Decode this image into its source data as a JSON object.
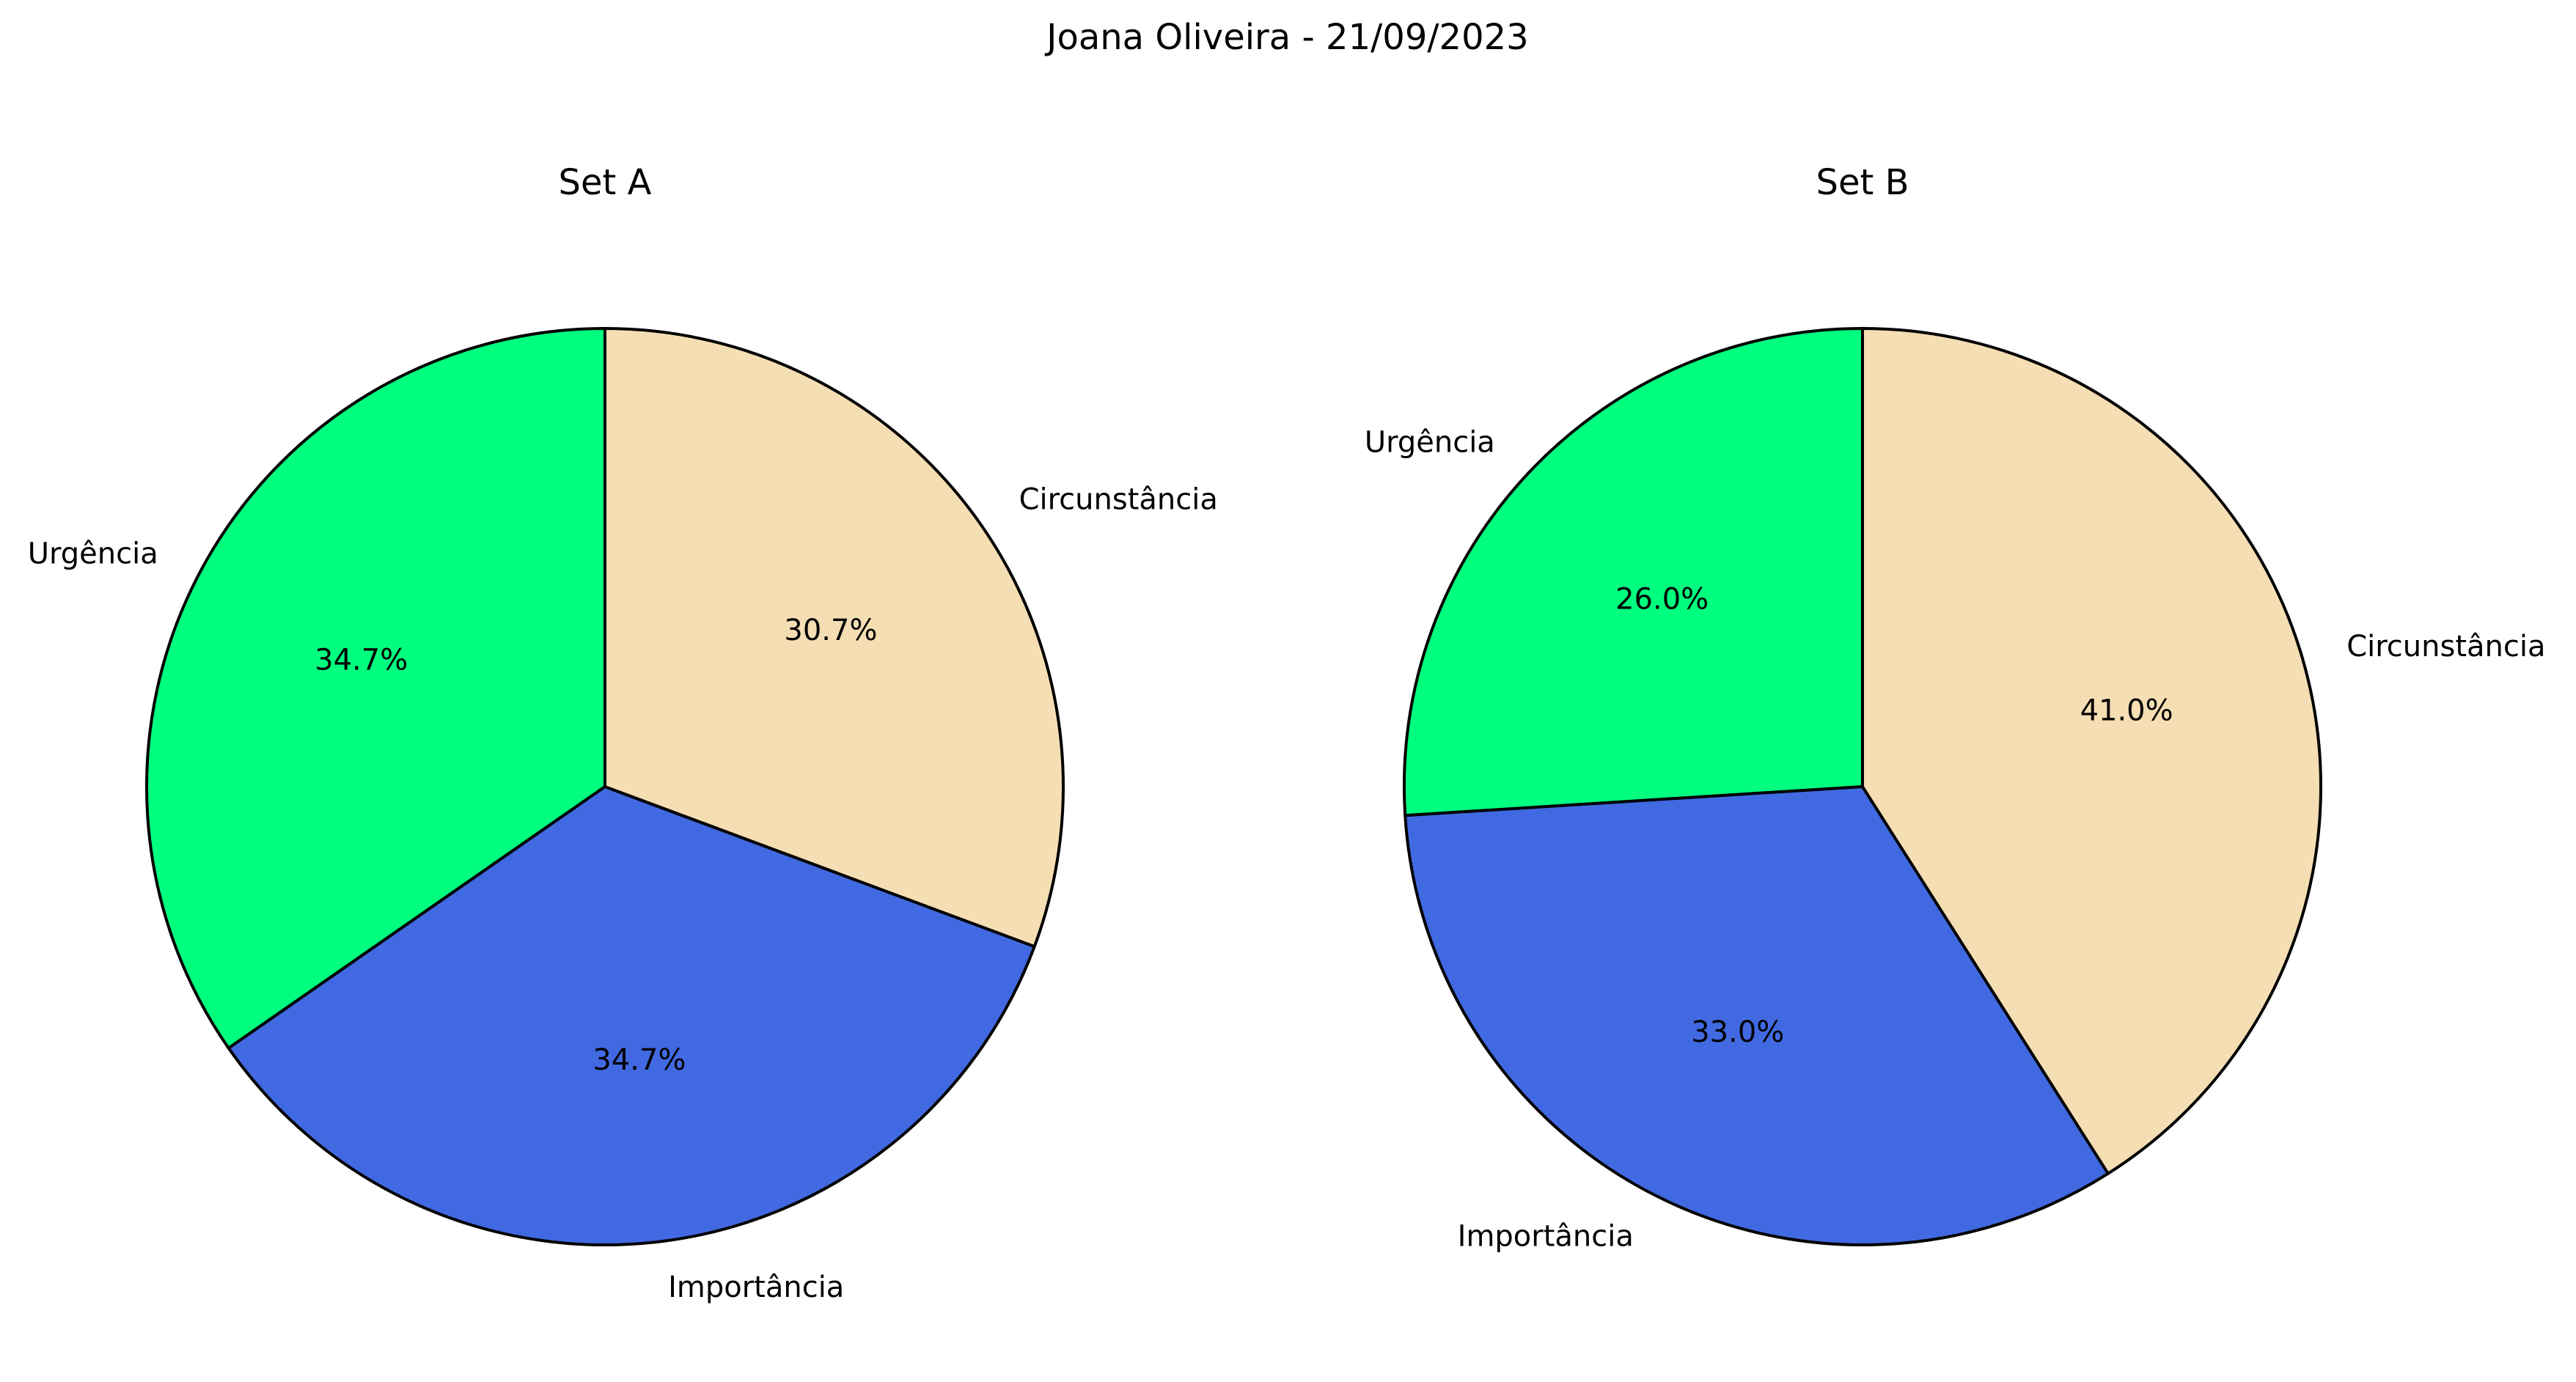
{
  "figure": {
    "suptitle": "Joana Oliveira - 21/09/2023"
  },
  "chart_data": [
    {
      "type": "pie",
      "title": "Set A",
      "start_angle_deg": 90,
      "direction": "counterclockwise",
      "slices": [
        {
          "label": "Urgência",
          "value": 34.7,
          "pct_label": "34.7%",
          "color": "#00ff7f"
        },
        {
          "label": "Importância",
          "value": 34.7,
          "pct_label": "34.7%",
          "color": "#4169e1"
        },
        {
          "label": "Circunstância",
          "value": 30.7,
          "pct_label": "30.7%",
          "color": "#f5deb3"
        }
      ]
    },
    {
      "type": "pie",
      "title": "Set B",
      "start_angle_deg": 90,
      "direction": "counterclockwise",
      "slices": [
        {
          "label": "Urgência",
          "value": 26.0,
          "pct_label": "26.0%",
          "color": "#00ff7f"
        },
        {
          "label": "Importância",
          "value": 33.0,
          "pct_label": "33.0%",
          "color": "#4169e1"
        },
        {
          "label": "Circunstância",
          "value": 41.0,
          "pct_label": "41.0%",
          "color": "#f5deb3"
        }
      ]
    }
  ]
}
